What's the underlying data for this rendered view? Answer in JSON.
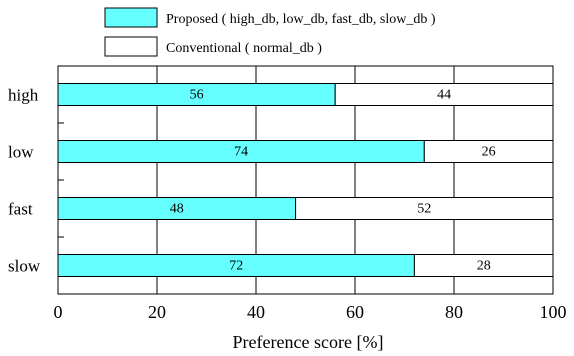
{
  "chart_data": {
    "type": "bar",
    "orientation": "horizontal",
    "stacked": true,
    "categories": [
      "high",
      "low",
      "fast",
      "slow"
    ],
    "series": [
      {
        "name": "Proposed ( high_db, low_db, fast_db, slow_db )",
        "color": "#66ffff",
        "values": [
          56,
          74,
          48,
          72
        ],
        "labels": [
          "56",
          "74",
          "48",
          "72"
        ]
      },
      {
        "name": "Conventional ( normal_db )",
        "color": "#ffffff",
        "values": [
          44,
          26,
          52,
          28
        ],
        "labels": [
          "44",
          "26",
          "52",
          "28"
        ]
      }
    ],
    "xlabel": "Preference score [%]",
    "xlim": [
      0,
      100
    ],
    "xticks": [
      0,
      20,
      40,
      60,
      80,
      100
    ],
    "xtick_labels": [
      "0",
      "20",
      "40",
      "60",
      "80",
      "100"
    ],
    "grid": "vertical",
    "legend_position": "top"
  }
}
